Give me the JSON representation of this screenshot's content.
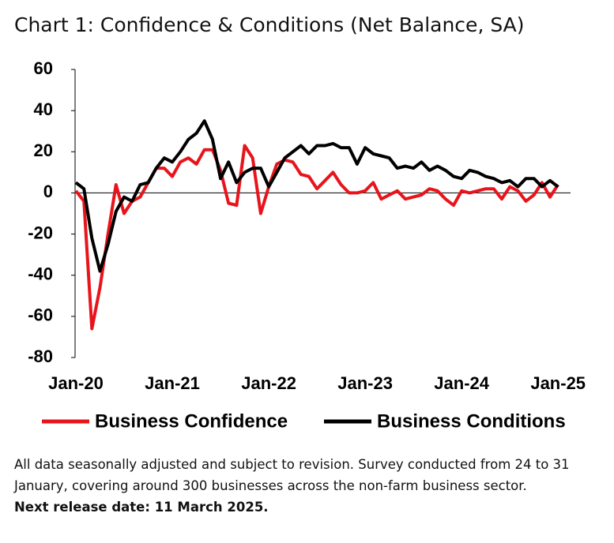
{
  "chart_data": {
    "type": "line",
    "title": "Chart 1: Confidence & Conditions (Net Balance, SA)",
    "categories": [
      "Jan-20",
      null,
      null,
      null,
      null,
      null,
      null,
      null,
      null,
      null,
      null,
      null,
      "Jan-21",
      null,
      null,
      null,
      null,
      null,
      null,
      null,
      null,
      null,
      null,
      null,
      "Jan-22",
      null,
      null,
      null,
      null,
      null,
      null,
      null,
      null,
      null,
      null,
      null,
      "Jan-23",
      null,
      null,
      null,
      null,
      null,
      null,
      null,
      null,
      null,
      null,
      null,
      "Jan-24",
      null,
      null,
      null,
      null,
      null,
      null,
      null,
      null,
      null,
      null,
      null,
      "Jan-25"
    ],
    "series": [
      {
        "name": "Business Confidence",
        "color": "#e8141b",
        "values": [
          1,
          -4,
          -66,
          -46,
          -20,
          4,
          -10,
          -4,
          -2,
          5,
          12,
          12,
          8,
          15,
          17,
          14,
          21,
          21,
          11,
          -5,
          -6,
          23,
          17,
          -10,
          3,
          14,
          16,
          15,
          9,
          8,
          2,
          6,
          10,
          4,
          0,
          0,
          1,
          5,
          -3,
          -1,
          1,
          -3,
          -2,
          -1,
          2,
          1,
          -3,
          -6,
          1,
          0,
          1,
          2,
          2,
          -3,
          3,
          1,
          -4,
          -1,
          5,
          -2,
          4
        ]
      },
      {
        "name": "Business Conditions",
        "color": "#000000",
        "values": [
          5,
          2,
          -22,
          -38,
          -25,
          -9,
          -2,
          -4,
          4,
          5,
          12,
          17,
          15,
          20,
          26,
          29,
          35,
          26,
          7,
          15,
          5,
          10,
          12,
          12,
          3,
          10,
          17,
          20,
          23,
          19,
          23,
          23,
          24,
          22,
          22,
          14,
          22,
          19,
          18,
          17,
          12,
          13,
          12,
          15,
          11,
          13,
          11,
          8,
          7,
          11,
          10,
          8,
          7,
          5,
          6,
          3,
          7,
          7,
          3,
          6,
          3
        ]
      }
    ],
    "ylim": [
      -80,
      60
    ],
    "yticks": [
      -80,
      -60,
      -40,
      -20,
      0,
      20,
      40,
      60
    ],
    "grid": false
  },
  "footnote": {
    "text": "All data seasonally adjusted and subject to revision. Survey conducted from 24 to 31 January, covering around 300 businesses across the non-farm business sector.",
    "release": "Next release date: 11 March 2025."
  }
}
